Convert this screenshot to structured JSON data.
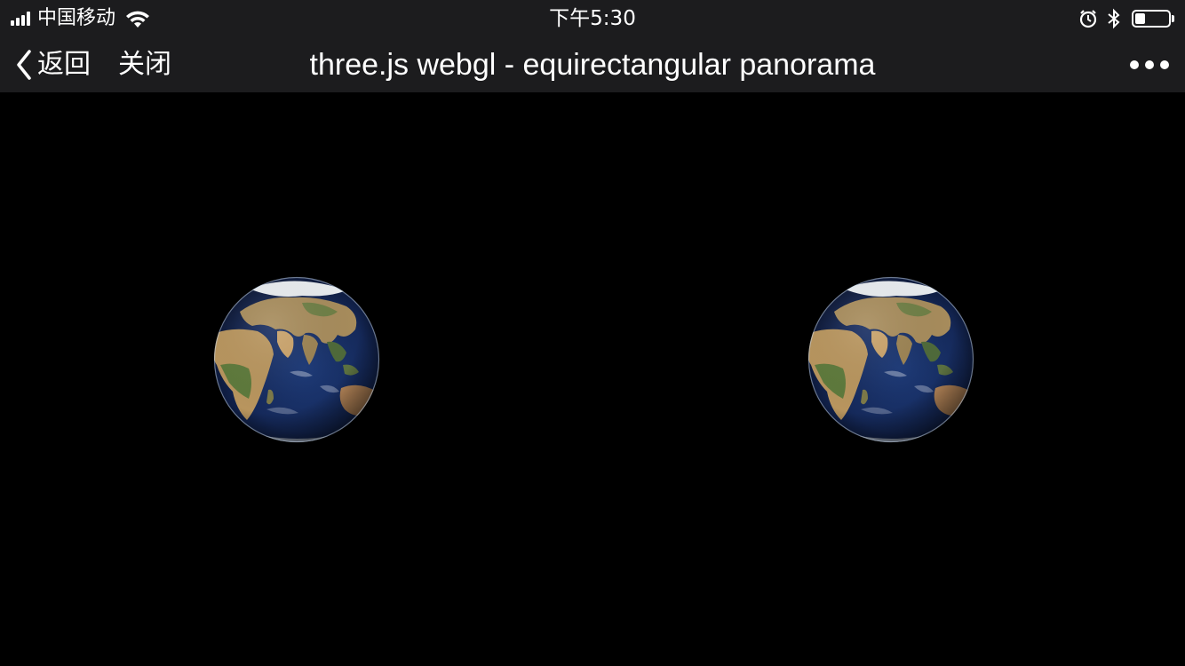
{
  "status_bar": {
    "carrier": "中国移动",
    "time": "下午5:30",
    "battery_level": 0.3,
    "icons": [
      "signal-icon",
      "wifi-icon",
      "alarm-icon",
      "bluetooth-icon",
      "battery-icon"
    ]
  },
  "nav": {
    "back_label": "返回",
    "close_label": "关闭",
    "title": "three.js webgl - equirectangular panorama",
    "icons": [
      "chevron-left-icon",
      "more-icon"
    ]
  },
  "viewport": {
    "background": "#000000",
    "views": [
      "left-eye",
      "right-eye"
    ],
    "content": "earth-globe"
  }
}
